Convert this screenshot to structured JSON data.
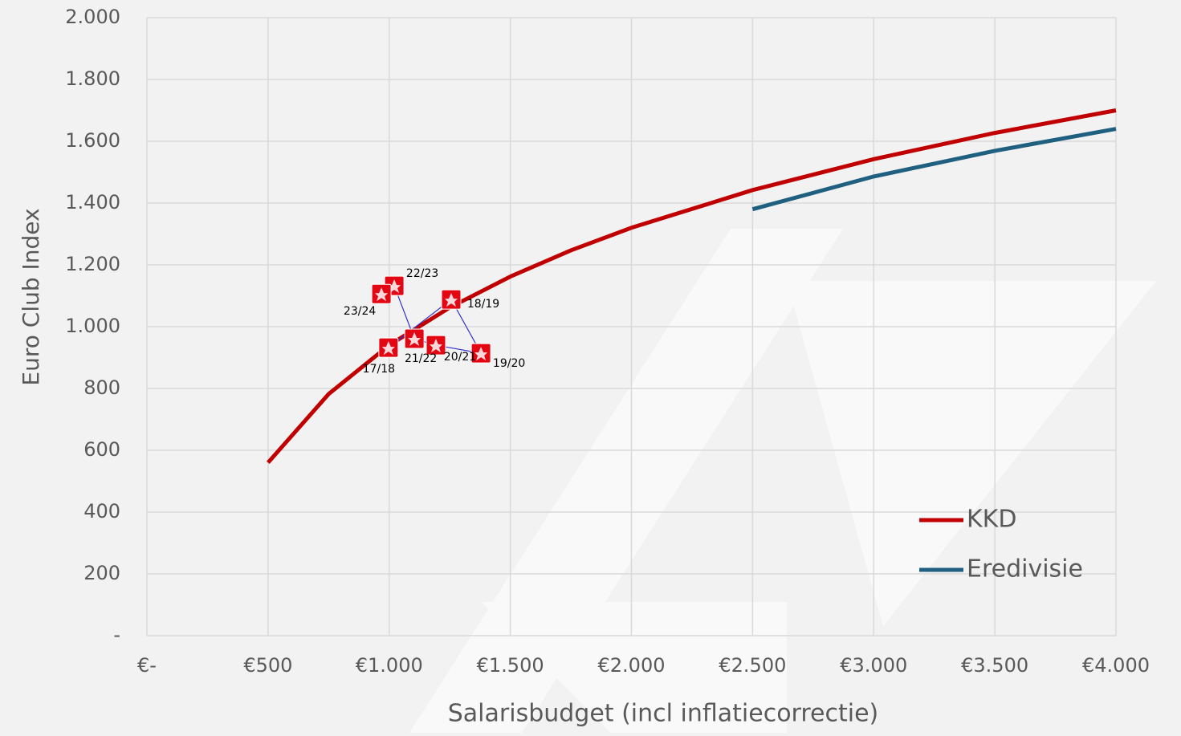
{
  "chart_data": {
    "type": "line",
    "x_label": "Salarisbudget (incl inflatiecorrectie)",
    "y_label": "Euro Club Index",
    "xlim": [
      0,
      4000
    ],
    "ylim": [
      0,
      2000
    ],
    "xticks": [
      {
        "value": 0,
        "label": "€-"
      },
      {
        "value": 500,
        "label": "€500"
      },
      {
        "value": 1000,
        "label": "€1.000"
      },
      {
        "value": 1500,
        "label": "€1.500"
      },
      {
        "value": 2000,
        "label": "€2.000"
      },
      {
        "value": 2500,
        "label": "€2.500"
      },
      {
        "value": 3000,
        "label": "€3.000"
      },
      {
        "value": 3500,
        "label": "€3.500"
      },
      {
        "value": 4000,
        "label": "€4.000"
      }
    ],
    "yticks": [
      {
        "value": 0,
        "label": "-"
      },
      200,
      400,
      600,
      800,
      {
        "value": 1000,
        "label": "1.000"
      },
      {
        "value": 1200,
        "label": "1.200"
      },
      {
        "value": 1400,
        "label": "1.400"
      },
      {
        "value": 1600,
        "label": "1.600"
      },
      {
        "value": 1800,
        "label": "1.800"
      },
      {
        "value": 2000,
        "label": "2.000"
      }
    ],
    "grid": true,
    "legend": "lower right",
    "series": [
      {
        "name": "KKD",
        "color": "#c00000",
        "x": [
          500,
          750,
          1000,
          1250,
          1500,
          1750,
          2000,
          2500,
          3000,
          3500,
          4000
        ],
        "values": [
          560,
          782,
          940,
          1062,
          1162,
          1247,
          1320,
          1442,
          1542,
          1627,
          1700
        ]
      },
      {
        "name": "Eredivisie",
        "color": "#1f5f80",
        "x": [
          2500,
          3000,
          3500,
          4000
        ],
        "values": [
          1380,
          1486,
          1569,
          1640
        ]
      }
    ],
    "points": {
      "color": "#3333cc",
      "marker_color": "#e30613",
      "labels": [
        "17/18",
        "18/19",
        "19/20",
        "20/21",
        "21/22",
        "22/23",
        "23/24"
      ],
      "x": [
        997,
        1256,
        1379,
        1193,
        1104,
        1021,
        968
      ],
      "values": [
        932,
        1088,
        914,
        940,
        961,
        1132,
        1106
      ]
    }
  }
}
